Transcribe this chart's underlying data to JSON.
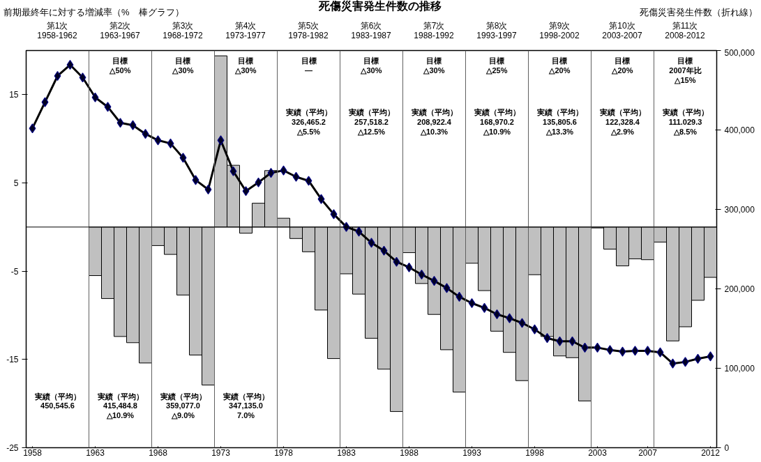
{
  "chart_data": {
    "type": "bar",
    "title": "死傷災害発生件数の推移",
    "ylabel": "前期最終年に対する増減率（%　棒グラフ）",
    "y2label": "死傷災害発生件数（折れ線）",
    "x": [
      1958,
      1959,
      1960,
      1961,
      1962,
      1963,
      1964,
      1965,
      1966,
      1967,
      1968,
      1969,
      1970,
      1971,
      1972,
      1973,
      1974,
      1975,
      1976,
      1977,
      1978,
      1979,
      1980,
      1981,
      1982,
      1983,
      1984,
      1985,
      1986,
      1987,
      1988,
      1989,
      1990,
      1991,
      1992,
      1993,
      1994,
      1995,
      1996,
      1997,
      1998,
      1999,
      2000,
      2001,
      2002,
      2003,
      2004,
      2005,
      2006,
      2007,
      2008,
      2009,
      2010,
      2011,
      2012
    ],
    "xlim": [
      1957.5,
      2012.5
    ],
    "xticks": [
      1958,
      1963,
      1968,
      1973,
      1978,
      1983,
      1988,
      1993,
      1998,
      2003,
      2007,
      2012
    ],
    "ylim": [
      -25,
      20
    ],
    "yticks": [
      -25,
      -15,
      -5,
      5,
      15
    ],
    "y2lim": [
      0,
      500000
    ],
    "y2ticks": [
      0,
      {
        "value": 100000,
        "label": "100,000"
      },
      {
        "value": 200000,
        "label": "200,000"
      },
      {
        "value": 300000,
        "label": "300,000"
      },
      {
        "value": 400000,
        "label": "400,000"
      },
      {
        "value": 500000,
        "label": "500,000"
      }
    ],
    "series": [
      {
        "color": "#c0c0c0",
        "values": [
          null,
          null,
          null,
          null,
          null,
          -5.5,
          -8.1,
          -12.4,
          -13.1,
          -15.4,
          -2.1,
          -3.1,
          -7.7,
          -14.5,
          -17.9,
          19.4,
          7.0,
          -0.7,
          2.7,
          6.4,
          1.0,
          -1.3,
          -2.8,
          -9.4,
          -14.9,
          -5.3,
          -7.6,
          -12.6,
          -16.1,
          -20.9,
          -2.9,
          -6.4,
          -9.9,
          -13.9,
          -18.7,
          -4.1,
          -7.2,
          -11.8,
          -14.2,
          -17.4,
          -5.4,
          -12.4,
          -14.6,
          -14.8,
          -19.7,
          -0.1,
          -2.5,
          -4.4,
          -3.6,
          -3.7,
          -1.7,
          -12.9,
          -11.3,
          -8.3,
          -5.7
        ]
      },
      {
        "type": "line",
        "axis": "y2",
        "color": "#000000",
        "values": [
          402000,
          435000,
          468000,
          482000,
          466000,
          441000,
          429000,
          409000,
          406000,
          395000,
          387000,
          383000,
          365000,
          337000,
          325000,
          387000,
          348000,
          323000,
          334000,
          346000,
          349000,
          341000,
          336000,
          313000,
          294000,
          278000,
          272000,
          258000,
          248000,
          234000,
          227000,
          218000,
          210000,
          201000,
          190000,
          182000,
          176000,
          168000,
          163000,
          157000,
          149000,
          138000,
          134000,
          134000,
          126000,
          126000,
          123000,
          121000,
          122000,
          122000,
          120000,
          106000,
          108000,
          112000,
          115000
        ]
      }
    ],
    "marker": "diamond",
    "line_style": "solid",
    "grid": false,
    "ref_lines": [
      {
        "axis": "y",
        "value": 0,
        "color": "#000000"
      },
      {
        "axis": "x",
        "value": 1962.5,
        "color": "#606060"
      },
      {
        "axis": "x",
        "value": 1967.5,
        "color": "#606060"
      },
      {
        "axis": "x",
        "value": 1972.5,
        "color": "#606060"
      },
      {
        "axis": "x",
        "value": 1977.5,
        "color": "#606060"
      },
      {
        "axis": "x",
        "value": 1982.5,
        "color": "#606060"
      },
      {
        "axis": "x",
        "value": 1987.5,
        "color": "#606060"
      },
      {
        "axis": "x",
        "value": 1992.5,
        "color": "#606060"
      },
      {
        "axis": "x",
        "value": 1997.5,
        "color": "#606060"
      },
      {
        "axis": "x",
        "value": 2002.5,
        "color": "#606060"
      },
      {
        "axis": "x",
        "value": 2007.5,
        "color": "#606060"
      }
    ],
    "annotations": [
      "第1次\n1958-1962",
      "第2次\n1963-1967",
      "第3次\n1968-1972",
      "第4次\n1973-1977",
      "第5次\n1978-1982",
      "第6次\n1983-1987",
      "第7次\n1988-1992",
      "第8次\n1993-1997",
      "第9次\n1998-2002",
      "第10次\n2003-2007",
      "第11次\n2008-2012",
      "目標\n△50%",
      "目標\n△30%",
      "目標\n△30%",
      "目標\n—",
      "目標\n△30%",
      "目標\n△30%",
      "目標\n△25%",
      "目標\n△20%",
      "目標\n△20%",
      "目標\n2007年比\n△15%",
      "実績（平均）\n450,545.6",
      "実績（平均）\n415,484.8\n△10.9%",
      "実績（平均）\n359,077.0\n△9.0%",
      "実績（平均）\n347,135.0\n7.0%",
      "実績（平均）\n326,465.2\n△5.5%",
      "実績（平均）\n257,518.2\n△12.5%",
      "実績（平均）\n208,922.4\n△10.3%",
      "実績（平均）\n168,970.2\n△10.9%",
      "実績（平均）\n135,805.6\n△13.3%",
      "実績（平均）\n122,328.4\n△2.9%",
      "実績（平均）\n111.029.3\n△8.5%"
    ]
  }
}
